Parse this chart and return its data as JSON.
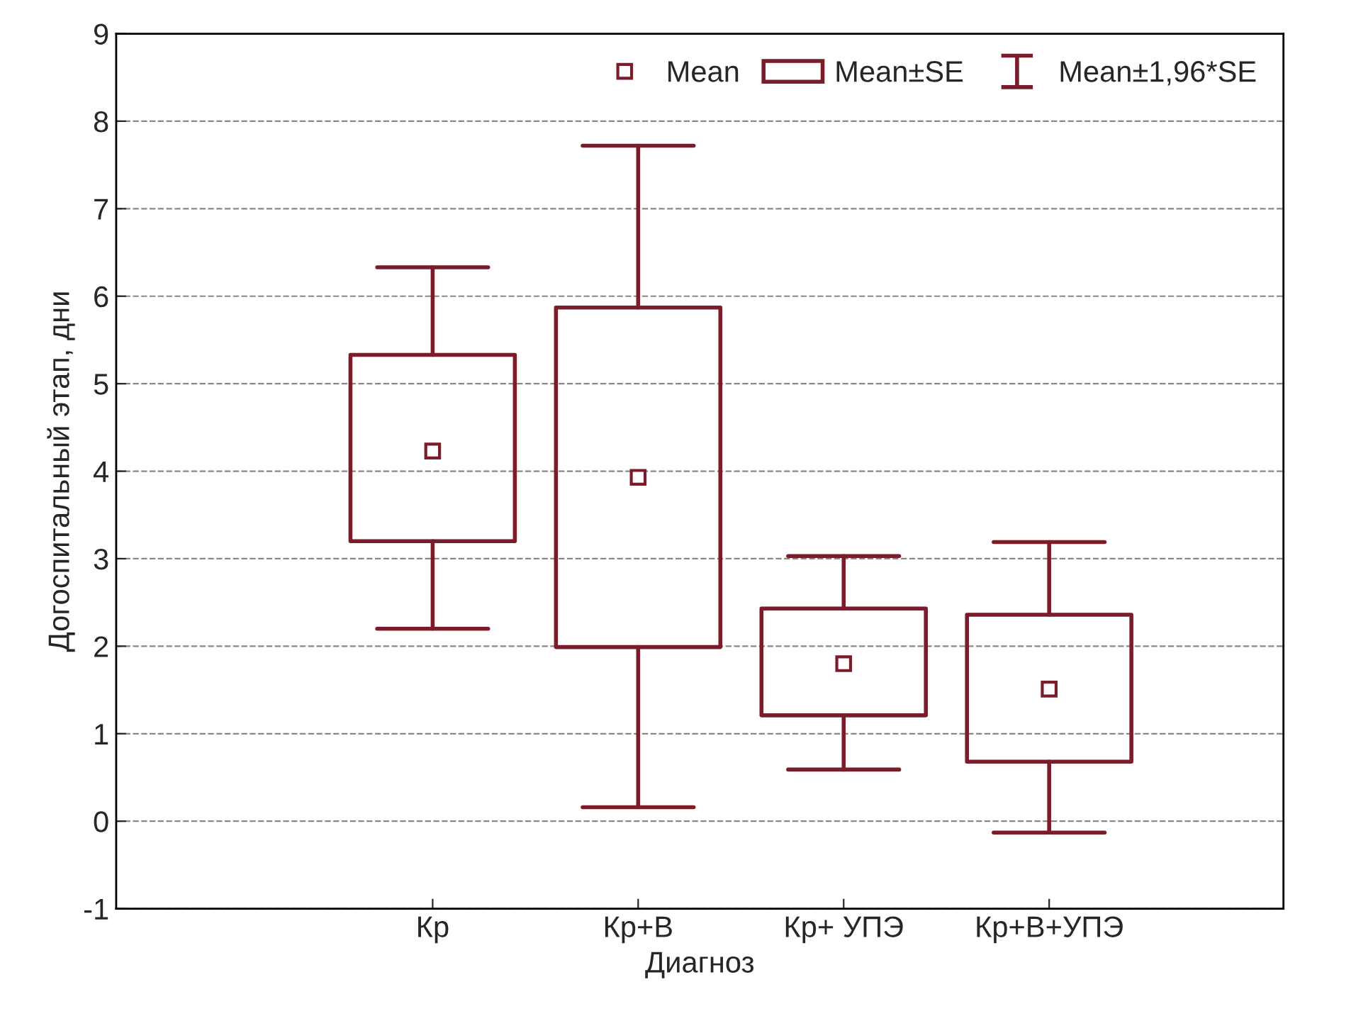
{
  "chart_data": {
    "type": "box",
    "xlabel": "Диагноз",
    "ylabel": "Догоспитальный этап, дни",
    "categories": [
      "Кр",
      "Кр+В",
      "Кр+ УПЭ",
      "Кр+В+УПЭ"
    ],
    "series": [
      {
        "name": "Mean±SE",
        "color": "#7b1c2a",
        "boxes": [
          {
            "low": 2.2,
            "q1": 3.2,
            "q3": 5.33,
            "high": 6.33,
            "mean": 4.23
          },
          {
            "low": 0.16,
            "q1": 1.99,
            "q3": 5.87,
            "high": 7.72,
            "mean": 3.93
          },
          {
            "low": 0.59,
            "q1": 1.21,
            "q3": 2.43,
            "high": 3.03,
            "mean": 1.8
          },
          {
            "low": -0.13,
            "q1": 0.68,
            "q3": 2.36,
            "high": 3.19,
            "mean": 1.51
          }
        ]
      }
    ],
    "annotations": [
      "Mean",
      "Mean±1,96*SE"
    ],
    "ylim": [
      -1,
      9
    ],
    "yticks": [
      -1,
      0,
      1,
      2,
      3,
      4,
      5,
      6,
      7,
      8,
      9
    ],
    "grid": "y",
    "legend": "top right"
  }
}
